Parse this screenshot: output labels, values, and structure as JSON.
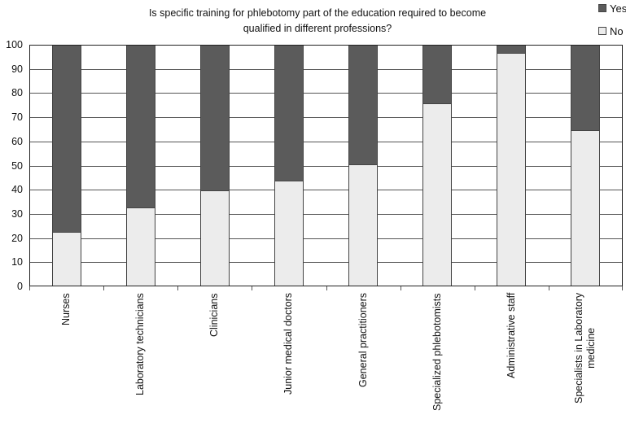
{
  "chart_data": {
    "type": "bar",
    "stacked": true,
    "title": "Is specific training for phlebotomy part of the education required to become qualified in different professions?",
    "title_lines": [
      "Is specific training for phlebotomy part of the education required to become",
      "qualified in different professions?"
    ],
    "xlabel": "",
    "ylabel": "",
    "ylim": [
      0,
      100
    ],
    "yticks": [
      0,
      10,
      20,
      30,
      40,
      50,
      60,
      70,
      80,
      90,
      100
    ],
    "grid": true,
    "legend_position": "top-right",
    "categories": [
      "Nurses",
      "Laboratory technicians",
      "Clinicians",
      "Junior medical doctors",
      "General practitioners",
      "Specialized phlebotomists",
      "Administrative staff",
      "Specialists in Laboratory medicine"
    ],
    "category_label_lines": [
      [
        "Nurses"
      ],
      [
        "Laboratory technicians"
      ],
      [
        "Clinicians"
      ],
      [
        "Junior medical doctors"
      ],
      [
        "General practitioners"
      ],
      [
        "Specialized phlebotomists"
      ],
      [
        "Administrative staff"
      ],
      [
        "Specialists in Laboratory",
        "medicine"
      ]
    ],
    "series": [
      {
        "name": "No",
        "color": "#ececec",
        "values": [
          22,
          32,
          39,
          43,
          50,
          75,
          96,
          64
        ]
      },
      {
        "name": "Yes",
        "color": "#5b5b5b",
        "values": [
          78,
          68,
          61,
          57,
          50,
          25,
          4,
          36
        ]
      }
    ]
  },
  "legend": {
    "items": [
      {
        "label": "Yes",
        "color": "#5b5b5b"
      },
      {
        "label": "No",
        "color": "#ececec"
      }
    ]
  }
}
